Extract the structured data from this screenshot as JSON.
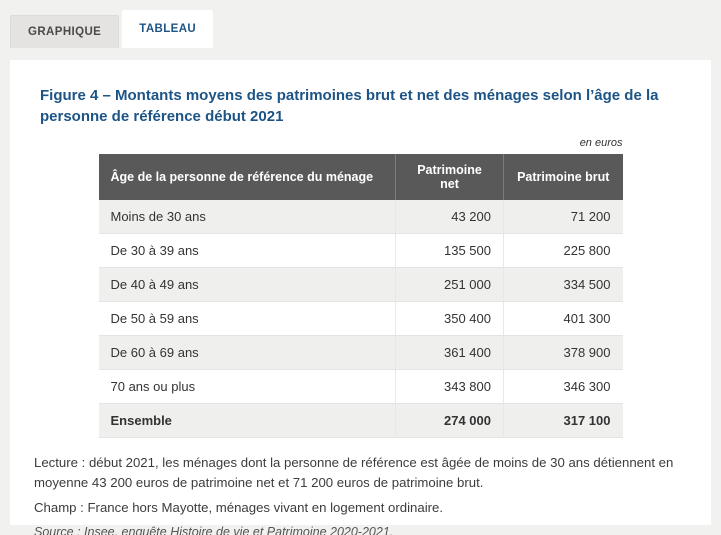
{
  "tabs": [
    {
      "label": "GRAPHIQUE",
      "active": false
    },
    {
      "label": "TABLEAU",
      "active": true
    }
  ],
  "figure": {
    "title": "Figure 4 – Montants moyens des patrimoines brut et net des ménages selon l’âge de la personne de référence début 2021",
    "unit_label": "en euros"
  },
  "chart_data": {
    "type": "table",
    "title": "Figure 4 – Montants moyens des patrimoines brut et net des ménages selon l’âge de la personne de référence début 2021",
    "unit": "en euros",
    "columns": [
      "Âge de la personne de référence du ménage",
      "Patrimoine net",
      "Patrimoine brut"
    ],
    "rows": [
      [
        "Moins de 30 ans",
        "43 200",
        "71 200"
      ],
      [
        "De 30 à 39 ans",
        "135 500",
        "225 800"
      ],
      [
        "De 40 à 49 ans",
        "251 000",
        "334 500"
      ],
      [
        "De 50 à 59 ans",
        "350 400",
        "401 300"
      ],
      [
        "De 60 à 69 ans",
        "361 400",
        "378 900"
      ],
      [
        "70 ans ou plus",
        "343 800",
        "346 300"
      ],
      [
        "Ensemble",
        "274 000",
        "317 100"
      ]
    ],
    "values_numeric": {
      "patrimoine_net": [
        43200,
        135500,
        251000,
        350400,
        361400,
        343800,
        274000
      ],
      "patrimoine_brut": [
        71200,
        225800,
        334500,
        401300,
        378900,
        346300,
        317100
      ]
    }
  },
  "notes": {
    "lecture": "Lecture : début 2021, les ménages dont la personne de référence est âgée de moins de 30 ans détiennent en moyenne 43 200 euros de patrimoine net et 71 200 euros de patrimoine brut.",
    "champ": "Champ : France hors Mayotte, ménages vivant en logement ordinaire.",
    "source": "Source : Insee, enquête Histoire de vie et Patrimoine 2020-2021."
  },
  "colors": {
    "accent_blue": "#1d5486",
    "table_header_bg": "#595959",
    "row_alt_bg": "#efefee",
    "page_bg": "#f1f1ef"
  }
}
